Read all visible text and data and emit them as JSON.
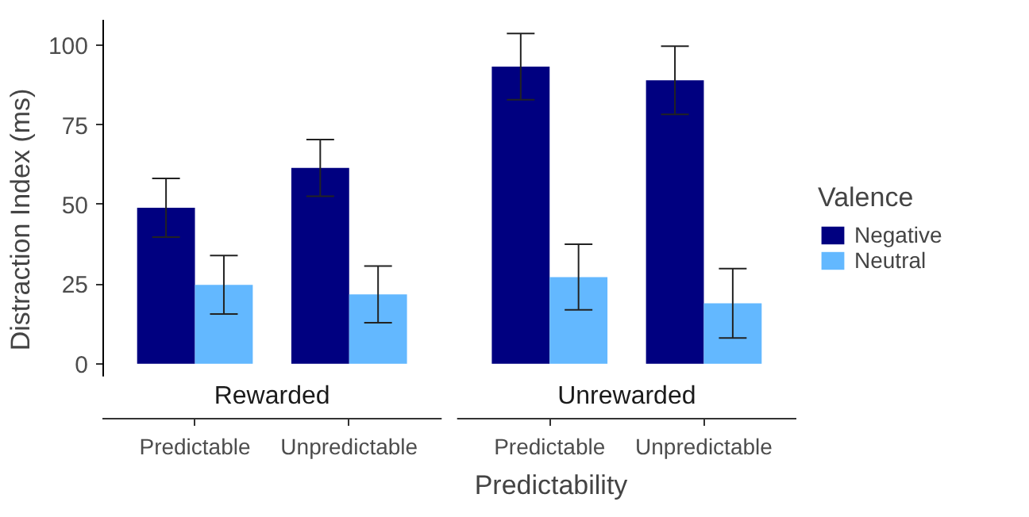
{
  "chart_data": {
    "type": "bar",
    "xlabel": "Predictability",
    "ylabel": "Distraction Index (ms)",
    "legend_title": "Valence",
    "categories": [
      "Predictable",
      "Unpredictable",
      "Predictable",
      "Unpredictable"
    ],
    "annotations": [
      "Rewarded",
      "Unrewarded"
    ],
    "series": [
      {
        "name": "Negative",
        "color": "#000080",
        "values": [
          49,
          61.5,
          93.3,
          89
        ],
        "errors": [
          9.2,
          8.9,
          10.4,
          10.7
        ]
      },
      {
        "name": "Neutral",
        "color": "#63b8ff",
        "values": [
          24.8,
          21.8,
          27.2,
          19
        ],
        "errors": [
          9.2,
          8.9,
          10.3,
          10.9
        ]
      }
    ],
    "ylim": [
      -4,
      108
    ],
    "yticks": [
      0,
      25,
      50,
      75,
      100
    ],
    "grid": false,
    "legend": "right"
  }
}
